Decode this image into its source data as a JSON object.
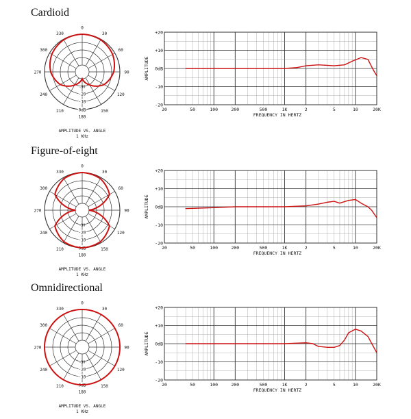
{
  "colors": {
    "curve": "#cc1111",
    "grid": "#333333",
    "minor_grid": "#999999"
  },
  "sections": [
    {
      "title": "Cardioid"
    },
    {
      "title": "Figure-of-eight"
    },
    {
      "title": "Omnidirectional"
    }
  ],
  "polar_axis": {
    "angle_labels": [
      "0",
      "30",
      "60",
      "90",
      "120",
      "150",
      "180",
      "210",
      "240",
      "270",
      "300",
      "330"
    ],
    "ring_labels": [
      "0dB",
      "-10",
      "-20",
      "-30"
    ],
    "caption_1": "AMPLITUDE VS. ANGLE",
    "caption_2": "1 KHz"
  },
  "freq_axis": {
    "xlabel": "FREQUENCY IN HERTZ",
    "ylabel": "AMPLITUDE",
    "x_ticks": [
      {
        "v": 20,
        "label": "20"
      },
      {
        "v": 50,
        "label": "50"
      },
      {
        "v": 100,
        "label": "100"
      },
      {
        "v": 200,
        "label": "200"
      },
      {
        "v": 500,
        "label": "500"
      },
      {
        "v": 1000,
        "label": "1K"
      },
      {
        "v": 2000,
        "label": "2"
      },
      {
        "v": 5000,
        "label": "5"
      },
      {
        "v": 10000,
        "label": "10"
      },
      {
        "v": 20000,
        "label": "20K"
      }
    ],
    "y_ticks": [
      {
        "v": 20,
        "label": "+20"
      },
      {
        "v": 10,
        "label": "+10"
      },
      {
        "v": 0,
        "label": "0dB"
      },
      {
        "v": -10,
        "label": "-10"
      },
      {
        "v": -20,
        "label": "-20"
      }
    ]
  },
  "chart_data": [
    {
      "type": "line",
      "scale": "polar",
      "pattern": "cardioid",
      "angles_deg": [
        0,
        30,
        60,
        90,
        120,
        150,
        180,
        210,
        240,
        270,
        300,
        330
      ],
      "values_db": [
        0,
        -0.6,
        -2.5,
        -6,
        -12,
        -22,
        -30,
        -22,
        -12,
        -6,
        -2.5,
        -0.6
      ],
      "rlim": [
        -30,
        0
      ]
    },
    {
      "type": "line",
      "scale": "log",
      "x": [
        40,
        100,
        200,
        500,
        1000,
        1500,
        2000,
        3000,
        5000,
        7000,
        9000,
        12000,
        15000,
        18000,
        20000
      ],
      "y": [
        0,
        0,
        0,
        0,
        0,
        0.5,
        1.5,
        2,
        1.5,
        2,
        4,
        6,
        5,
        -1,
        -4
      ],
      "xlim": [
        20,
        20000
      ],
      "ylim": [
        -20,
        20
      ]
    },
    {
      "type": "line",
      "scale": "polar",
      "pattern": "figure-of-eight",
      "angles_deg": [
        0,
        30,
        60,
        90,
        120,
        150,
        180,
        210,
        240,
        270,
        300,
        330
      ],
      "values_db": [
        0,
        -1.2,
        -6,
        -30,
        -6,
        -1.2,
        0,
        -1.2,
        -6,
        -30,
        -6,
        -1.2
      ],
      "rlim": [
        -30,
        0
      ]
    },
    {
      "type": "line",
      "scale": "log",
      "x": [
        40,
        100,
        200,
        500,
        1000,
        2000,
        3000,
        4000,
        5000,
        6000,
        8000,
        10000,
        12000,
        15000,
        17000,
        20000
      ],
      "y": [
        -1,
        -0.5,
        0,
        0,
        0,
        0.5,
        1.5,
        2.5,
        3,
        2,
        3.5,
        4,
        2,
        0,
        -2,
        -6
      ],
      "xlim": [
        20,
        20000
      ],
      "ylim": [
        -20,
        20
      ]
    },
    {
      "type": "line",
      "scale": "polar",
      "pattern": "omnidirectional",
      "angles_deg": [
        0,
        30,
        60,
        90,
        120,
        150,
        180,
        210,
        240,
        270,
        300,
        330
      ],
      "values_db": [
        0,
        0,
        0,
        0,
        0,
        0,
        0,
        0,
        0,
        0,
        0,
        0
      ],
      "rlim": [
        -30,
        0
      ]
    },
    {
      "type": "line",
      "scale": "log",
      "x": [
        40,
        100,
        200,
        500,
        1000,
        2000,
        2500,
        3000,
        4000,
        5000,
        6000,
        7000,
        8000,
        10000,
        12000,
        15000,
        20000
      ],
      "y": [
        0,
        0,
        0,
        0,
        0,
        0.5,
        0,
        -1.5,
        -2,
        -2,
        -1,
        2,
        6,
        8,
        7,
        4,
        -5
      ],
      "xlim": [
        20,
        20000
      ],
      "ylim": [
        -20,
        20
      ]
    }
  ]
}
